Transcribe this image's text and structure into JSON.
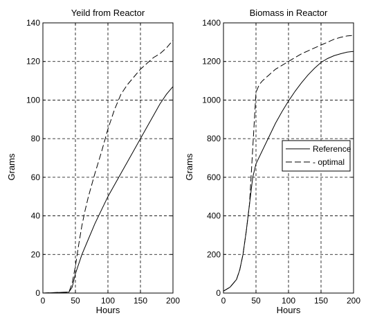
{
  "chart_data": [
    {
      "type": "line",
      "title": "Yeild from Reactor",
      "xlabel": "Hours",
      "ylabel": "Grams",
      "xlim": [
        0,
        200
      ],
      "ylim": [
        0,
        140
      ],
      "xticks": [
        0,
        50,
        100,
        150,
        200
      ],
      "yticks": [
        0,
        20,
        40,
        60,
        80,
        100,
        120,
        140
      ],
      "xtick_labels": [
        "0",
        "50",
        "100",
        "150",
        "200"
      ],
      "ytick_labels": [
        "0",
        "20",
        "40",
        "60",
        "80",
        "100",
        "120",
        "140"
      ],
      "grid": true,
      "series": [
        {
          "style": "solid",
          "x": [
            0,
            40,
            45,
            50,
            55,
            60,
            70,
            80,
            90,
            100,
            110,
            120,
            130,
            140,
            150,
            160,
            170,
            180,
            190,
            200
          ],
          "y": [
            0,
            0.5,
            3,
            10,
            15,
            20,
            28,
            36,
            43,
            50,
            56,
            62,
            68,
            74,
            80,
            86,
            92,
            98,
            103,
            107
          ]
        },
        {
          "style": "dashed",
          "x": [
            0,
            40,
            45,
            50,
            55,
            60,
            65,
            70,
            80,
            90,
            100,
            110,
            120,
            130,
            140,
            150,
            160,
            170,
            180,
            190,
            200
          ],
          "y": [
            0,
            0.5,
            5,
            14,
            25,
            35,
            43,
            50,
            62,
            73,
            85,
            95,
            103,
            108,
            112,
            116,
            119,
            122,
            124,
            127,
            131
          ]
        }
      ]
    },
    {
      "type": "line",
      "title": "Biomass in Reactor",
      "xlabel": "Hours",
      "ylabel": "Grams",
      "xlim": [
        0,
        200
      ],
      "ylim": [
        0,
        1400
      ],
      "xticks": [
        0,
        50,
        100,
        150,
        200
      ],
      "yticks": [
        0,
        200,
        400,
        600,
        800,
        1000,
        1200,
        1400
      ],
      "xtick_labels": [
        "0",
        "50",
        "100",
        "150",
        "200"
      ],
      "ytick_labels": [
        "0",
        "200",
        "400",
        "600",
        "800",
        "1000",
        "1200",
        "1400"
      ],
      "grid": true,
      "legend_position": "middle-right",
      "series": [
        {
          "name": "Reference",
          "style": "solid",
          "x": [
            0,
            10,
            20,
            25,
            30,
            35,
            40,
            45,
            50,
            60,
            70,
            80,
            90,
            100,
            110,
            120,
            130,
            140,
            150,
            160,
            170,
            180,
            190,
            200
          ],
          "y": [
            10,
            30,
            70,
            120,
            200,
            320,
            460,
            600,
            670,
            740,
            810,
            880,
            940,
            995,
            1045,
            1090,
            1130,
            1165,
            1195,
            1215,
            1230,
            1240,
            1248,
            1252
          ]
        },
        {
          "name": "- optimal",
          "style": "dashed",
          "x": [
            0,
            10,
            20,
            25,
            30,
            35,
            40,
            45,
            50,
            55,
            60,
            70,
            80,
            90,
            100,
            110,
            120,
            130,
            140,
            150,
            160,
            170,
            180,
            190,
            200
          ],
          "y": [
            10,
            30,
            70,
            120,
            200,
            320,
            460,
            750,
            1040,
            1080,
            1100,
            1130,
            1160,
            1180,
            1200,
            1220,
            1240,
            1255,
            1270,
            1285,
            1300,
            1315,
            1325,
            1332,
            1335
          ]
        }
      ]
    }
  ]
}
